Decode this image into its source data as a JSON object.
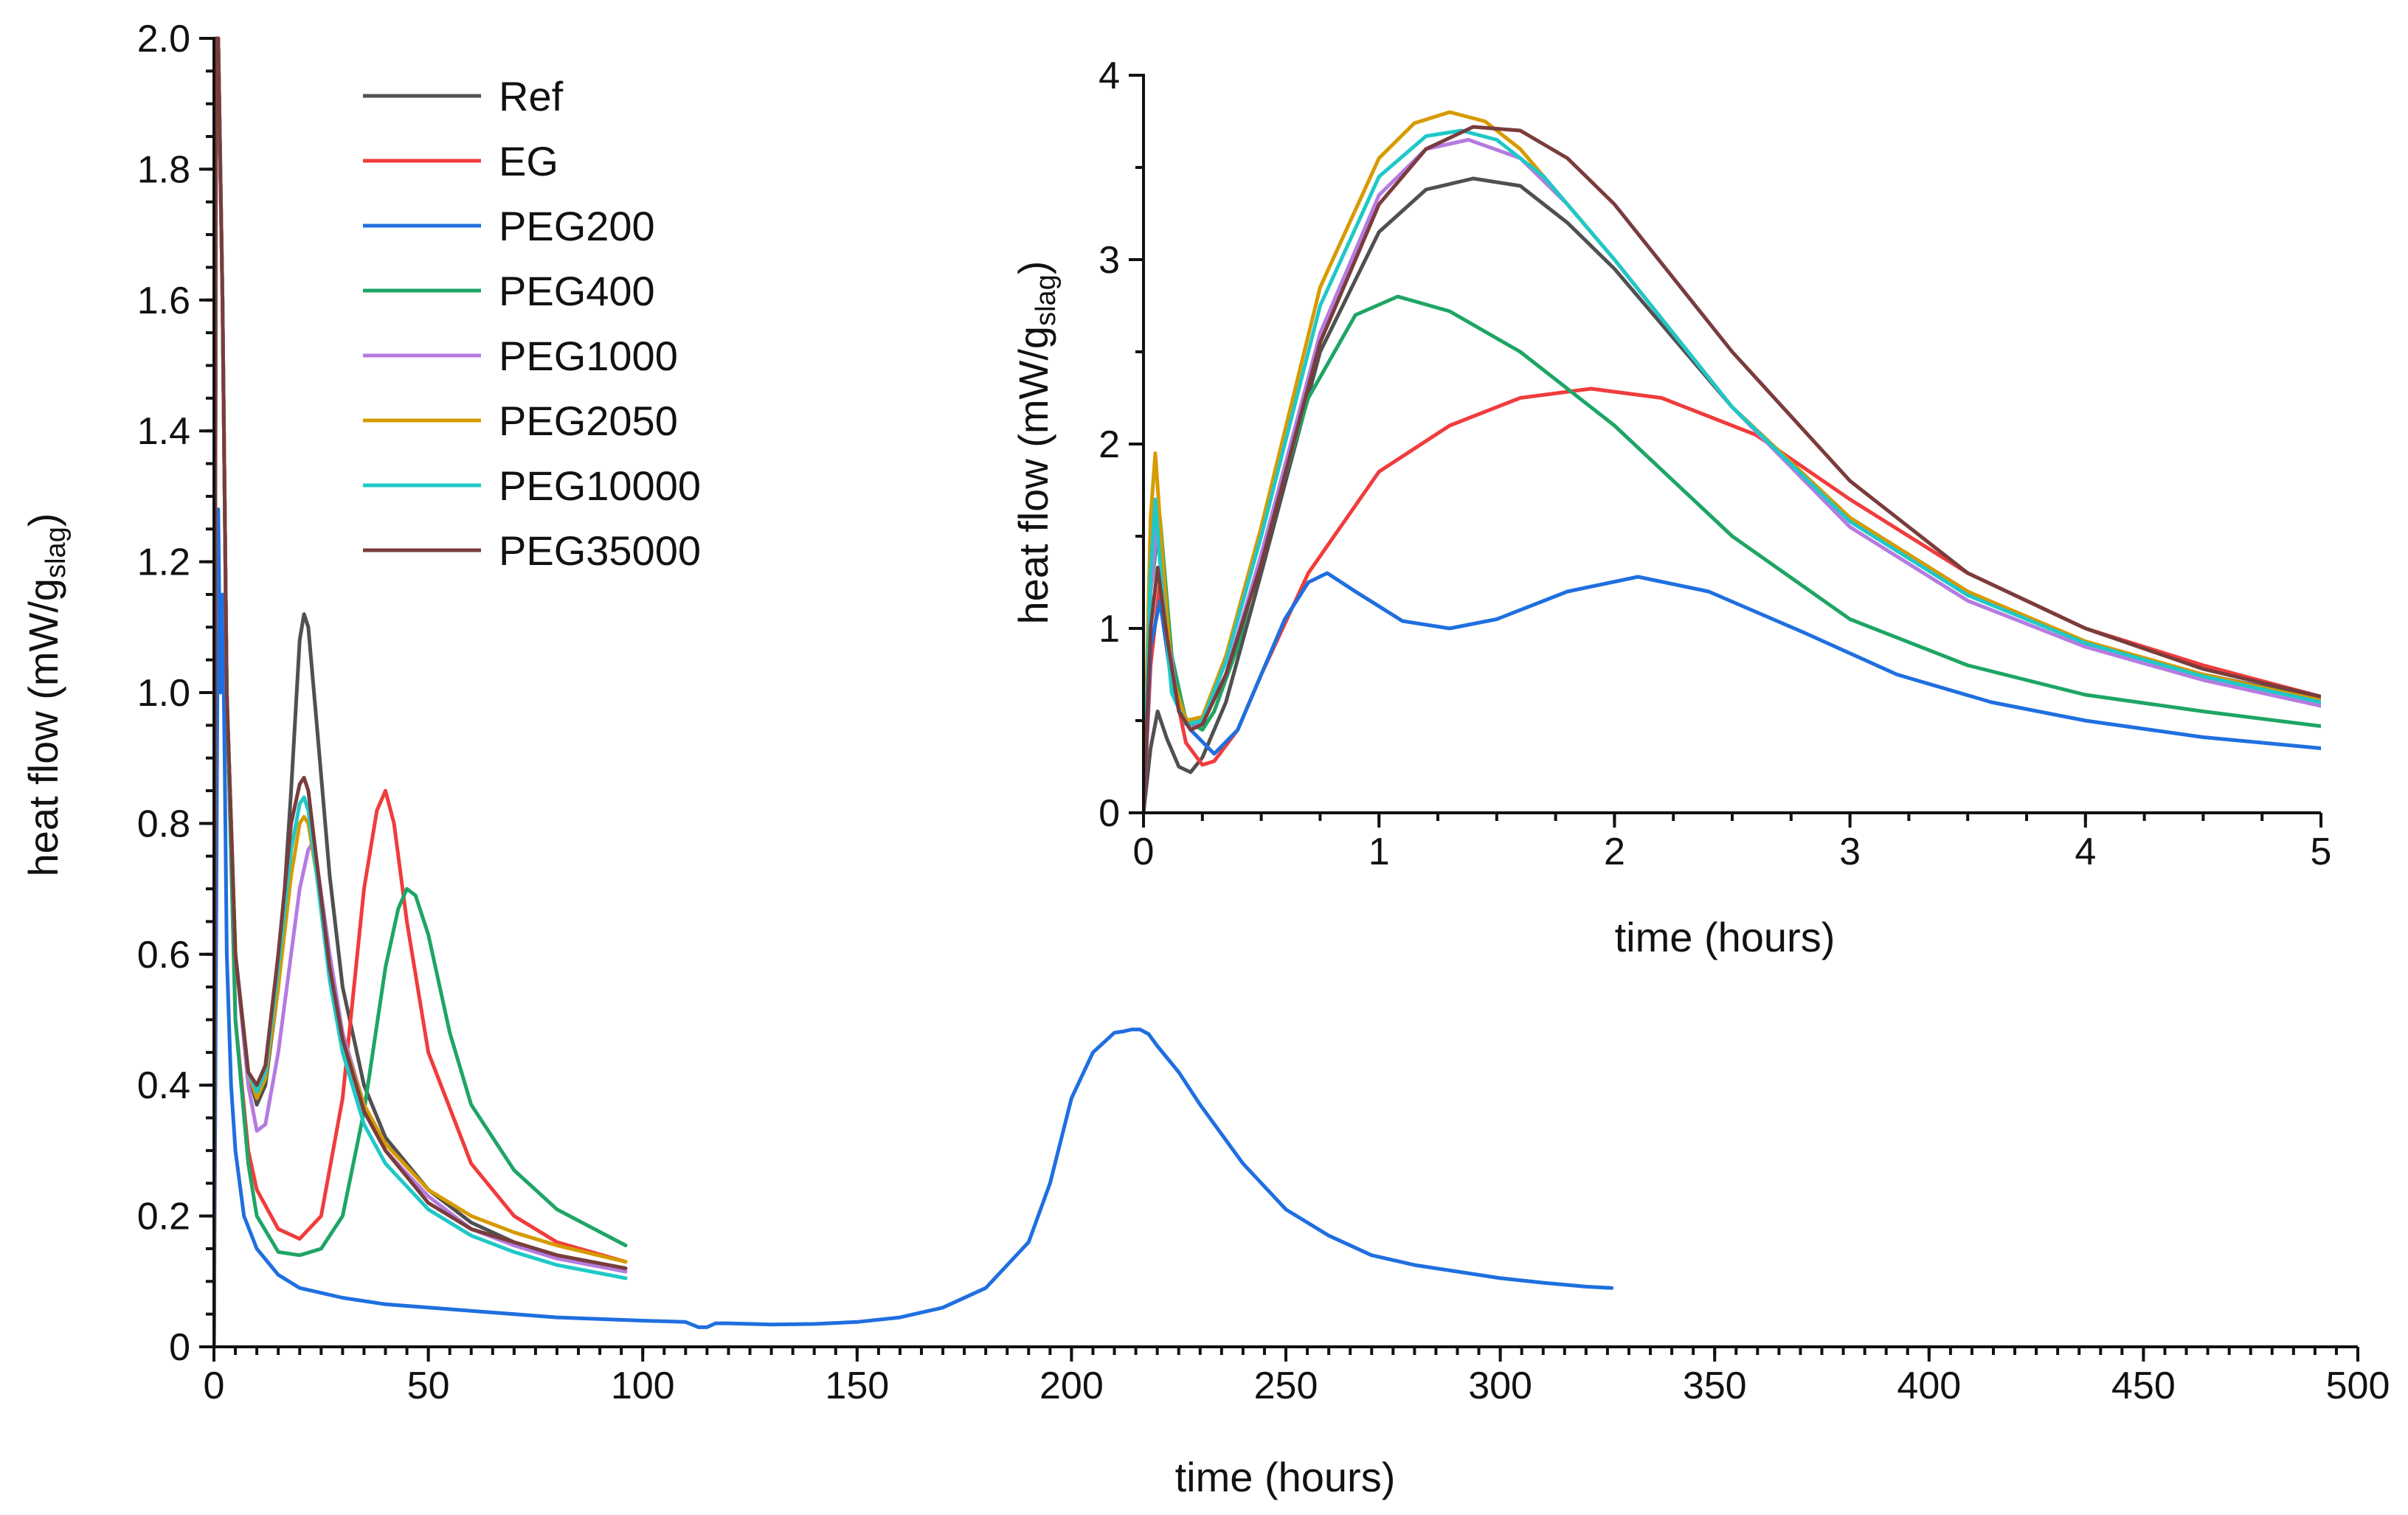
{
  "chart_data": [
    {
      "id": "main",
      "type": "line",
      "title": "",
      "xlabel": "time (hours)",
      "ylabel": "heat flow (mW/g",
      "ylabel_sub": "slag",
      "ylabel_end": ")",
      "xlim": [
        0,
        500
      ],
      "ylim": [
        0,
        2.0
      ],
      "xticks": [
        0,
        50,
        100,
        150,
        200,
        250,
        300,
        350,
        400,
        450,
        500
      ],
      "yticks": [
        "0",
        "0.2",
        "0.4",
        "0.6",
        "0.8",
        "1.0",
        "1.2",
        "1.4",
        "1.6",
        "1.8",
        "2.0"
      ],
      "legend_position": "top-left",
      "series": [
        {
          "name": "Ref",
          "color": "#505050",
          "x": [
            0,
            0.5,
            1,
            2,
            3,
            5,
            8,
            10,
            12,
            15,
            18,
            20,
            21,
            22,
            24,
            27,
            30,
            35,
            40,
            50,
            60,
            70,
            80,
            96
          ],
          "y": [
            0,
            2.0,
            2.0,
            1.6,
            1.0,
            0.6,
            0.42,
            0.37,
            0.4,
            0.55,
            0.85,
            1.08,
            1.12,
            1.1,
            0.95,
            0.72,
            0.55,
            0.4,
            0.32,
            0.24,
            0.19,
            0.16,
            0.14,
            0.12
          ]
        },
        {
          "name": "EG",
          "color": "#f03c3c",
          "x": [
            0,
            0.5,
            1,
            2,
            3,
            5,
            8,
            10,
            15,
            20,
            25,
            30,
            35,
            38,
            40,
            42,
            45,
            50,
            60,
            70,
            80,
            96
          ],
          "y": [
            0,
            2.0,
            2.0,
            1.6,
            1.0,
            0.5,
            0.3,
            0.24,
            0.18,
            0.165,
            0.2,
            0.38,
            0.7,
            0.82,
            0.85,
            0.8,
            0.65,
            0.45,
            0.28,
            0.2,
            0.16,
            0.13
          ]
        },
        {
          "name": "PEG200",
          "color": "#1f6fe0",
          "x": [
            0,
            0.5,
            1,
            1.5,
            2,
            2.5,
            3,
            4,
            5,
            7,
            10,
            15,
            20,
            30,
            40,
            50,
            60,
            80,
            100,
            110,
            113,
            115,
            117,
            120,
            130,
            140,
            150,
            160,
            170,
            180,
            190,
            195,
            200,
            205,
            210,
            212,
            214,
            216,
            218,
            220,
            225,
            230,
            240,
            250,
            260,
            270,
            280,
            290,
            300,
            310,
            320,
            326
          ],
          "y": [
            0,
            0.6,
            1.28,
            1.0,
            1.15,
            0.9,
            0.6,
            0.4,
            0.3,
            0.2,
            0.15,
            0.11,
            0.09,
            0.075,
            0.065,
            0.06,
            0.055,
            0.045,
            0.04,
            0.038,
            0.03,
            0.03,
            0.036,
            0.036,
            0.034,
            0.035,
            0.038,
            0.045,
            0.06,
            0.09,
            0.16,
            0.25,
            0.38,
            0.45,
            0.48,
            0.482,
            0.485,
            0.485,
            0.478,
            0.46,
            0.42,
            0.37,
            0.28,
            0.21,
            0.17,
            0.14,
            0.125,
            0.115,
            0.105,
            0.098,
            0.092,
            0.09
          ]
        },
        {
          "name": "PEG400",
          "color": "#1ea565",
          "x": [
            0,
            0.5,
            1,
            2,
            3,
            5,
            8,
            10,
            15,
            20,
            25,
            30,
            35,
            40,
            43,
            45,
            47,
            50,
            55,
            60,
            70,
            80,
            96
          ],
          "y": [
            0,
            2.0,
            2.0,
            1.6,
            1.0,
            0.5,
            0.28,
            0.2,
            0.145,
            0.14,
            0.15,
            0.2,
            0.36,
            0.58,
            0.67,
            0.7,
            0.69,
            0.63,
            0.48,
            0.37,
            0.27,
            0.21,
            0.155
          ]
        },
        {
          "name": "PEG1000",
          "color": "#b57be0",
          "x": [
            0,
            0.5,
            1,
            2,
            3,
            5,
            8,
            10,
            12,
            15,
            18,
            20,
            22,
            23,
            24,
            27,
            30,
            35,
            40,
            50,
            60,
            70,
            80,
            96
          ],
          "y": [
            0,
            2.0,
            2.0,
            1.6,
            1.0,
            0.6,
            0.4,
            0.33,
            0.34,
            0.45,
            0.6,
            0.7,
            0.76,
            0.77,
            0.74,
            0.6,
            0.48,
            0.37,
            0.3,
            0.23,
            0.18,
            0.155,
            0.135,
            0.115
          ]
        },
        {
          "name": "PEG2050",
          "color": "#d79a00",
          "x": [
            0,
            0.5,
            1,
            2,
            3,
            5,
            8,
            10,
            12,
            15,
            18,
            20,
            21,
            22,
            24,
            27,
            30,
            35,
            40,
            50,
            60,
            70,
            80,
            96
          ],
          "y": [
            0,
            2.0,
            2.0,
            1.6,
            1.0,
            0.6,
            0.42,
            0.38,
            0.41,
            0.55,
            0.72,
            0.8,
            0.81,
            0.8,
            0.72,
            0.58,
            0.47,
            0.37,
            0.31,
            0.24,
            0.2,
            0.175,
            0.155,
            0.13
          ]
        },
        {
          "name": "PEG10000",
          "color": "#1fc8c8",
          "x": [
            0,
            0.5,
            1,
            2,
            3,
            5,
            8,
            10,
            12,
            15,
            18,
            20,
            21,
            22,
            24,
            27,
            30,
            35,
            40,
            50,
            60,
            70,
            80,
            96
          ],
          "y": [
            0,
            2.0,
            2.0,
            1.6,
            1.0,
            0.6,
            0.42,
            0.39,
            0.42,
            0.58,
            0.76,
            0.83,
            0.84,
            0.82,
            0.72,
            0.56,
            0.45,
            0.34,
            0.28,
            0.21,
            0.17,
            0.145,
            0.125,
            0.105
          ]
        },
        {
          "name": "PEG35000",
          "color": "#7a3c3c",
          "x": [
            0,
            0.5,
            1,
            2,
            3,
            5,
            8,
            10,
            12,
            15,
            18,
            20,
            21,
            22,
            24,
            27,
            30,
            35,
            40,
            50,
            60,
            70,
            80,
            96
          ],
          "y": [
            0,
            2.0,
            2.0,
            1.6,
            1.0,
            0.6,
            0.42,
            0.4,
            0.43,
            0.6,
            0.8,
            0.86,
            0.87,
            0.85,
            0.74,
            0.58,
            0.47,
            0.36,
            0.3,
            0.22,
            0.18,
            0.16,
            0.14,
            0.12
          ]
        }
      ]
    },
    {
      "id": "inset",
      "type": "line",
      "title": "",
      "xlabel": "time (hours)",
      "ylabel": "heat flow (mW/g",
      "ylabel_sub": "slag",
      "ylabel_end": ")",
      "xlim": [
        0,
        5
      ],
      "ylim": [
        0,
        4
      ],
      "xticks": [
        0,
        1,
        2,
        3,
        4,
        5
      ],
      "yticks": [
        0,
        1,
        2,
        3,
        4
      ],
      "series": [
        {
          "name": "Ref",
          "color": "#505050",
          "x": [
            0,
            0.03,
            0.06,
            0.1,
            0.15,
            0.2,
            0.25,
            0.35,
            0.5,
            0.75,
            1.0,
            1.2,
            1.4,
            1.6,
            1.8,
            2.0,
            2.5,
            3.0,
            3.5,
            4.0,
            4.5,
            5.0
          ],
          "y": [
            0,
            0.35,
            0.55,
            0.4,
            0.25,
            0.22,
            0.3,
            0.6,
            1.3,
            2.5,
            3.15,
            3.38,
            3.44,
            3.4,
            3.2,
            2.95,
            2.2,
            1.6,
            1.2,
            0.92,
            0.75,
            0.62
          ]
        },
        {
          "name": "EG",
          "color": "#f03c3c",
          "x": [
            0,
            0.03,
            0.07,
            0.12,
            0.18,
            0.25,
            0.3,
            0.4,
            0.5,
            0.7,
            1.0,
            1.3,
            1.6,
            1.9,
            2.2,
            2.6,
            3.0,
            3.5,
            4.0,
            4.5,
            5.0
          ],
          "y": [
            0,
            0.8,
            1.25,
            0.75,
            0.38,
            0.26,
            0.28,
            0.45,
            0.75,
            1.3,
            1.85,
            2.1,
            2.25,
            2.3,
            2.25,
            2.05,
            1.7,
            1.3,
            1.0,
            0.8,
            0.63
          ]
        },
        {
          "name": "PEG200",
          "color": "#1f6fe0",
          "x": [
            0,
            0.03,
            0.07,
            0.12,
            0.2,
            0.3,
            0.4,
            0.5,
            0.6,
            0.7,
            0.78,
            0.9,
            1.1,
            1.3,
            1.5,
            1.8,
            2.1,
            2.4,
            2.8,
            3.2,
            3.6,
            4.0,
            4.5,
            5.0
          ],
          "y": [
            0,
            0.9,
            1.15,
            0.7,
            0.45,
            0.32,
            0.45,
            0.75,
            1.05,
            1.25,
            1.3,
            1.2,
            1.04,
            1.0,
            1.05,
            1.2,
            1.28,
            1.2,
            0.98,
            0.75,
            0.6,
            0.5,
            0.41,
            0.35
          ]
        },
        {
          "name": "PEG400",
          "color": "#1ea565",
          "x": [
            0,
            0.03,
            0.07,
            0.12,
            0.18,
            0.25,
            0.3,
            0.4,
            0.5,
            0.7,
            0.9,
            1.08,
            1.3,
            1.6,
            2.0,
            2.5,
            3.0,
            3.5,
            4.0,
            4.5,
            5.0
          ],
          "y": [
            0,
            1.2,
            1.6,
            0.85,
            0.5,
            0.45,
            0.55,
            0.9,
            1.4,
            2.25,
            2.7,
            2.8,
            2.72,
            2.5,
            2.1,
            1.5,
            1.05,
            0.8,
            0.64,
            0.55,
            0.47
          ]
        },
        {
          "name": "PEG1000",
          "color": "#b57be0",
          "x": [
            0,
            0.03,
            0.06,
            0.1,
            0.15,
            0.2,
            0.25,
            0.35,
            0.5,
            0.75,
            1.0,
            1.2,
            1.38,
            1.6,
            1.8,
            2.0,
            2.5,
            3.0,
            3.5,
            4.0,
            4.5,
            5.0
          ],
          "y": [
            0,
            1.2,
            1.6,
            1.0,
            0.55,
            0.45,
            0.5,
            0.75,
            1.4,
            2.6,
            3.35,
            3.6,
            3.65,
            3.55,
            3.3,
            3.0,
            2.2,
            1.55,
            1.15,
            0.9,
            0.72,
            0.58
          ]
        },
        {
          "name": "PEG2050",
          "color": "#d79a00",
          "x": [
            0,
            0.03,
            0.05,
            0.08,
            0.12,
            0.18,
            0.25,
            0.35,
            0.5,
            0.75,
            1.0,
            1.15,
            1.3,
            1.45,
            1.6,
            1.8,
            2.0,
            2.5,
            3.0,
            3.5,
            4.0,
            4.5,
            5.0
          ],
          "y": [
            0,
            1.6,
            1.95,
            1.4,
            0.75,
            0.5,
            0.52,
            0.85,
            1.55,
            2.85,
            3.55,
            3.74,
            3.8,
            3.75,
            3.6,
            3.3,
            3.0,
            2.2,
            1.6,
            1.2,
            0.93,
            0.75,
            0.61
          ]
        },
        {
          "name": "PEG10000",
          "color": "#1fc8c8",
          "x": [
            0,
            0.03,
            0.05,
            0.08,
            0.12,
            0.18,
            0.25,
            0.35,
            0.5,
            0.75,
            1.0,
            1.2,
            1.35,
            1.5,
            1.7,
            2.0,
            2.5,
            3.0,
            3.5,
            4.0,
            4.5,
            5.0
          ],
          "y": [
            0,
            1.3,
            1.7,
            1.2,
            0.65,
            0.48,
            0.5,
            0.82,
            1.5,
            2.75,
            3.45,
            3.67,
            3.7,
            3.65,
            3.45,
            3.0,
            2.2,
            1.58,
            1.18,
            0.92,
            0.74,
            0.6
          ]
        },
        {
          "name": "PEG35000",
          "color": "#7a3c3c",
          "x": [
            0,
            0.03,
            0.06,
            0.1,
            0.15,
            0.2,
            0.25,
            0.35,
            0.5,
            0.75,
            1.0,
            1.2,
            1.4,
            1.6,
            1.8,
            2.0,
            2.5,
            3.0,
            3.5,
            4.0,
            4.5,
            5.0
          ],
          "y": [
            0,
            1.0,
            1.33,
            0.95,
            0.55,
            0.45,
            0.48,
            0.75,
            1.35,
            2.55,
            3.3,
            3.6,
            3.72,
            3.7,
            3.55,
            3.3,
            2.5,
            1.8,
            1.3,
            1.0,
            0.78,
            0.63
          ]
        }
      ]
    }
  ]
}
